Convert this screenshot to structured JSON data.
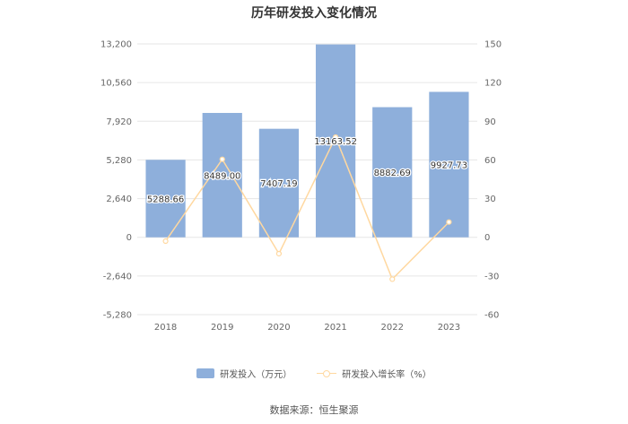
{
  "chart_data": {
    "type": "bar",
    "title": "历年研发投入变化情况",
    "categories": [
      "2018",
      "2019",
      "2020",
      "2021",
      "2022",
      "2023"
    ],
    "series": [
      {
        "name": "研发投入（万元）",
        "type": "bar",
        "axis": "left",
        "values": [
          5288.66,
          8489.0,
          7407.19,
          13163.52,
          8882.69,
          9927.73
        ],
        "labels": [
          "5288.66",
          "8489.00",
          "7407.19",
          "13163.52",
          "8882.69",
          "9927.73"
        ],
        "color": "#8eafdb"
      },
      {
        "name": "研发投入增长率（%）",
        "type": "line",
        "axis": "right",
        "values": [
          -3,
          60.5,
          -12.7,
          77.7,
          -32.5,
          11.8
        ],
        "color": "#ffd8a0"
      }
    ],
    "y_left": {
      "ylim": [
        -5280,
        13200
      ],
      "ticks": [
        13200,
        10560,
        7920,
        5280,
        2640,
        0,
        -2640,
        -5280
      ],
      "tick_labels": [
        "13,200",
        "10,560",
        "7,920",
        "5,280",
        "2,640",
        "0",
        "-2,640",
        "-5,280"
      ]
    },
    "y_right": {
      "ylim": [
        -60,
        150
      ],
      "ticks": [
        150,
        120,
        90,
        60,
        30,
        0,
        -30,
        -60
      ],
      "tick_labels": [
        "150",
        "120",
        "90",
        "60",
        "30",
        "0",
        "-30",
        "-60"
      ]
    },
    "grid": true,
    "legend_position": "bottom",
    "source": "数据来源：恒生聚源"
  }
}
